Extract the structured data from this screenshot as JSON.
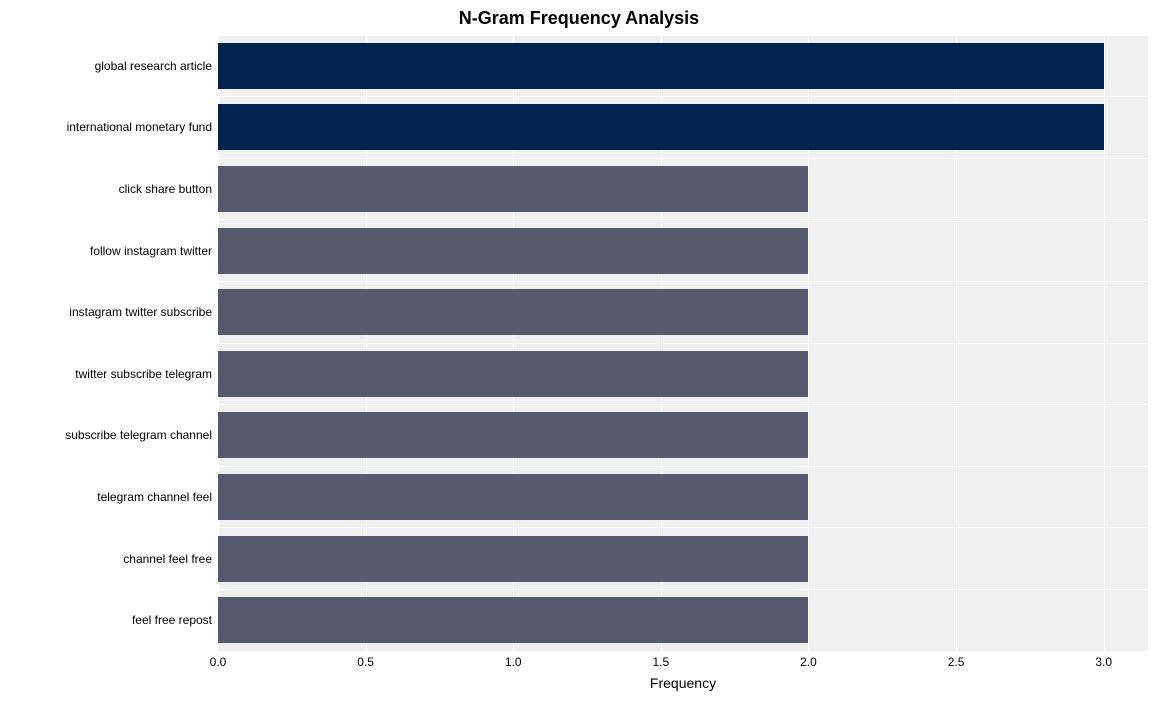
{
  "chart": {
    "type": "bar-horizontal",
    "title": "N-Gram Frequency Analysis",
    "title_fontsize": 18,
    "title_fontweight": "bold",
    "xlabel": "Frequency",
    "xlabel_fontsize": 14,
    "ylabel_fontsize": 12,
    "xtick_fontsize": 12,
    "xlim": [
      0.0,
      3.15
    ],
    "xtick_step": 0.5,
    "xticks": [
      "0.0",
      "0.5",
      "1.0",
      "1.5",
      "2.0",
      "2.5",
      "3.0"
    ],
    "background_color": "#ffffff",
    "plot_bg_even": "#f0f0f0",
    "plot_bg_odd": "#f7f7f7",
    "grid_color": "#ffffff",
    "grid_width": 1,
    "bar_height_ratio": 0.75,
    "categories": [
      "global research article",
      "international monetary fund",
      "click share button",
      "follow instagram twitter",
      "instagram twitter subscribe",
      "twitter subscribe telegram",
      "subscribe telegram channel",
      "telegram channel feel",
      "channel feel free",
      "feel free repost"
    ],
    "values": [
      3,
      3,
      2,
      2,
      2,
      2,
      2,
      2,
      2,
      2
    ],
    "bar_colors": [
      "#00234f",
      "#00234f",
      "#555a6e",
      "#555a6e",
      "#555a6e",
      "#555a6e",
      "#555a6e",
      "#555a6e",
      "#555a6e",
      "#555a6e"
    ]
  }
}
